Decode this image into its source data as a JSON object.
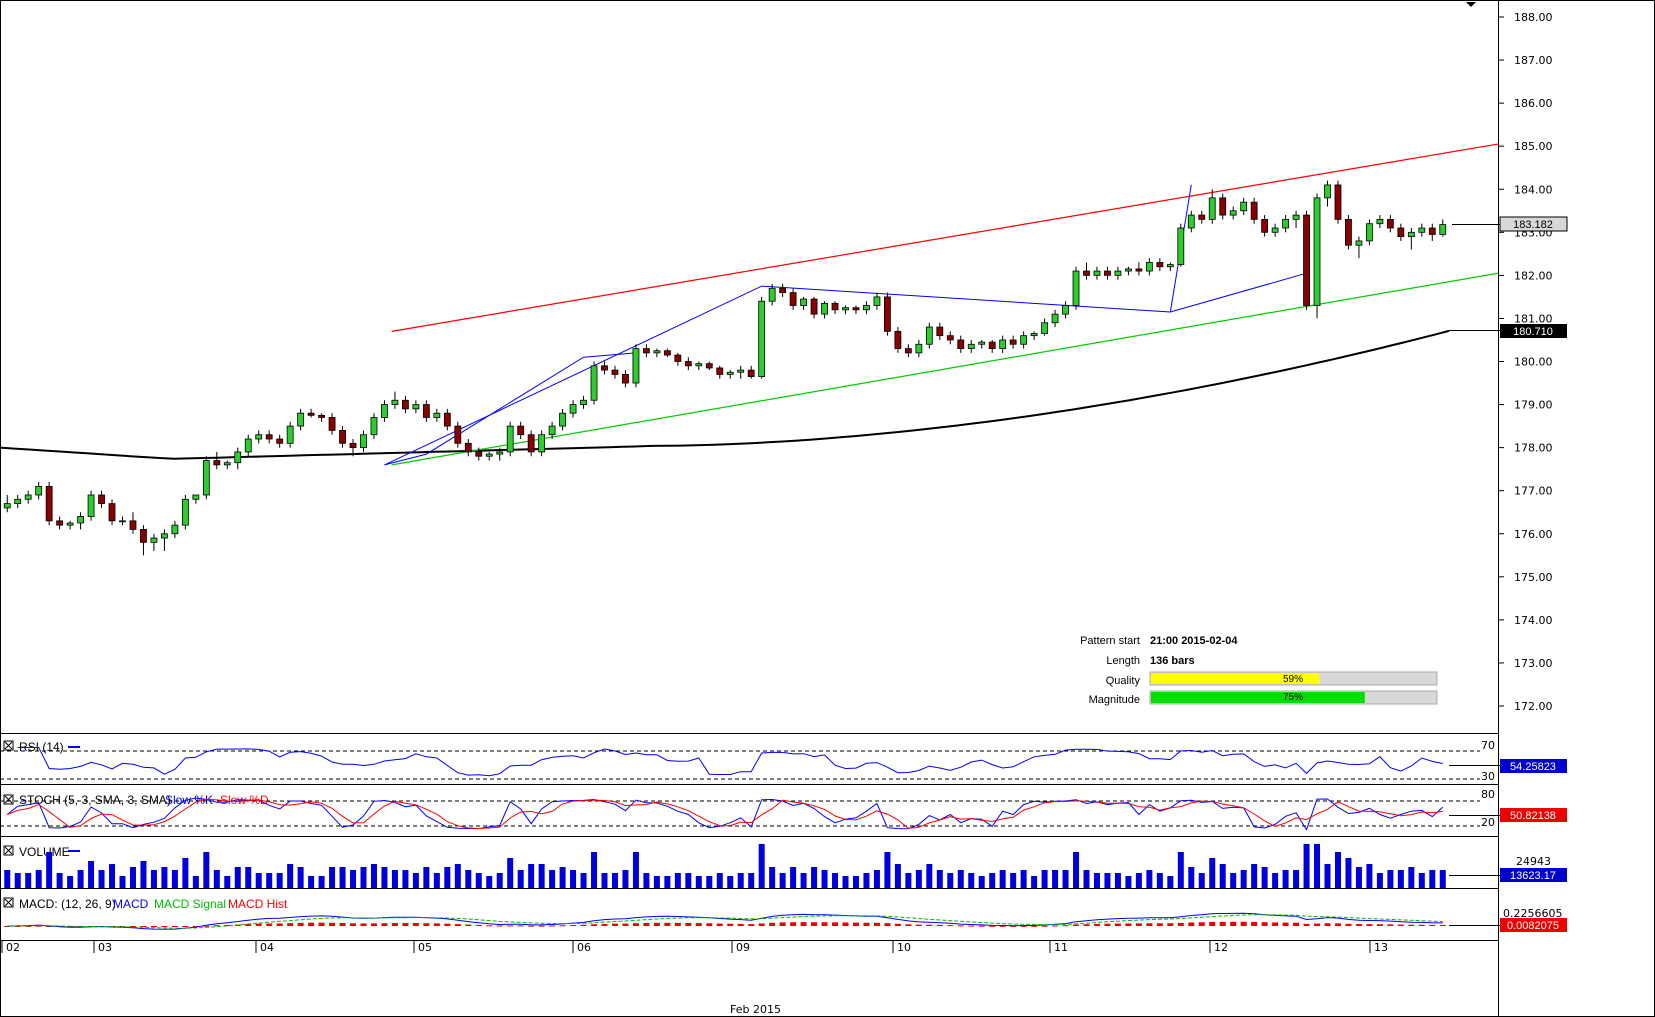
{
  "chart_data": {
    "type": "candlestick",
    "price_axis": {
      "ticks": [
        "188.00",
        "187.00",
        "186.00",
        "185.00",
        "184.00",
        "183.00",
        "182.00",
        "181.00",
        "180.00",
        "179.00",
        "178.00",
        "177.00",
        "176.00",
        "175.00",
        "174.00",
        "173.00",
        "172.00"
      ],
      "range": [
        171.3,
        188.2
      ]
    },
    "time_axis": {
      "labels": [
        "02",
        "03",
        "04",
        "05",
        "06",
        "09",
        "10",
        "11",
        "12",
        "13"
      ],
      "month_label": "Feb 2015"
    },
    "candles_ohlc_approx": [
      [
        176.6,
        176.9,
        176.5,
        176.7
      ],
      [
        176.7,
        176.9,
        176.6,
        176.8
      ],
      [
        176.8,
        177.0,
        176.7,
        176.9
      ],
      [
        176.9,
        177.2,
        176.8,
        177.1
      ],
      [
        177.1,
        177.2,
        176.2,
        176.3
      ],
      [
        176.3,
        176.4,
        176.1,
        176.2
      ],
      [
        176.2,
        176.3,
        176.1,
        176.25
      ],
      [
        176.25,
        176.5,
        176.1,
        176.4
      ],
      [
        176.4,
        177.0,
        176.3,
        176.9
      ],
      [
        176.9,
        177.0,
        176.6,
        176.7
      ],
      [
        176.7,
        176.8,
        176.2,
        176.3
      ],
      [
        176.3,
        176.4,
        176.2,
        176.3
      ],
      [
        176.3,
        176.5,
        176.0,
        176.1
      ],
      [
        176.1,
        176.2,
        175.5,
        175.8
      ],
      [
        175.8,
        176.0,
        175.6,
        175.9
      ],
      [
        175.9,
        176.1,
        175.6,
        176.0
      ],
      [
        176.0,
        176.3,
        175.9,
        176.2
      ],
      [
        176.2,
        176.9,
        176.1,
        176.8
      ],
      [
        176.8,
        176.9,
        176.7,
        176.9
      ],
      [
        176.9,
        177.8,
        176.8,
        177.7
      ],
      [
        177.7,
        177.9,
        177.5,
        177.6
      ],
      [
        177.6,
        177.7,
        177.5,
        177.65
      ],
      [
        177.65,
        178.0,
        177.5,
        177.9
      ],
      [
        177.9,
        178.3,
        177.8,
        178.2
      ],
      [
        178.2,
        178.4,
        178.1,
        178.3
      ],
      [
        178.3,
        178.4,
        178.1,
        178.2
      ],
      [
        178.2,
        178.3,
        178.0,
        178.1
      ],
      [
        178.1,
        178.6,
        178.0,
        178.5
      ],
      [
        178.5,
        178.9,
        178.4,
        178.8
      ],
      [
        178.8,
        178.9,
        178.7,
        178.75
      ],
      [
        178.75,
        178.8,
        178.6,
        178.7
      ],
      [
        178.7,
        178.8,
        178.3,
        178.4
      ],
      [
        178.4,
        178.5,
        178.0,
        178.1
      ],
      [
        178.1,
        178.2,
        177.8,
        178.0
      ],
      [
        178.0,
        178.4,
        177.9,
        178.3
      ],
      [
        178.3,
        178.8,
        178.2,
        178.7
      ],
      [
        178.7,
        179.1,
        178.6,
        179.0
      ],
      [
        179.0,
        179.3,
        178.9,
        179.1
      ],
      [
        179.1,
        179.2,
        178.8,
        178.9
      ],
      [
        178.9,
        179.1,
        178.8,
        179.0
      ],
      [
        179.0,
        179.1,
        178.6,
        178.7
      ],
      [
        178.7,
        178.9,
        178.6,
        178.8
      ],
      [
        178.8,
        178.9,
        178.4,
        178.5
      ],
      [
        178.5,
        178.6,
        178.0,
        178.1
      ],
      [
        178.1,
        178.2,
        177.8,
        177.9
      ],
      [
        177.9,
        178.0,
        177.7,
        177.8
      ],
      [
        177.8,
        177.9,
        177.7,
        177.85
      ],
      [
        177.85,
        178.0,
        177.7,
        177.9
      ],
      [
        177.9,
        178.6,
        177.8,
        178.5
      ],
      [
        178.5,
        178.6,
        178.2,
        178.3
      ],
      [
        178.3,
        178.4,
        177.8,
        177.9
      ],
      [
        177.9,
        178.4,
        177.8,
        178.3
      ],
      [
        178.3,
        178.6,
        178.2,
        178.5
      ],
      [
        178.5,
        178.9,
        178.4,
        178.8
      ],
      [
        178.8,
        179.1,
        178.7,
        179.0
      ],
      [
        179.0,
        179.2,
        178.9,
        179.1
      ],
      [
        179.1,
        180.0,
        179.0,
        179.9
      ],
      [
        179.9,
        180.0,
        179.7,
        179.8
      ],
      [
        179.8,
        179.9,
        179.6,
        179.7
      ],
      [
        179.7,
        179.8,
        179.4,
        179.5
      ],
      [
        179.5,
        180.4,
        179.4,
        180.3
      ],
      [
        180.3,
        180.4,
        180.1,
        180.2
      ],
      [
        180.2,
        180.3,
        180.1,
        180.25
      ],
      [
        180.25,
        180.3,
        180.1,
        180.15
      ],
      [
        180.15,
        180.2,
        179.9,
        180.0
      ],
      [
        180.0,
        180.1,
        179.8,
        179.9
      ],
      [
        179.9,
        180.0,
        179.8,
        179.95
      ],
      [
        179.95,
        180.0,
        179.8,
        179.85
      ],
      [
        179.85,
        179.9,
        179.6,
        179.7
      ],
      [
        179.7,
        179.8,
        179.6,
        179.75
      ],
      [
        179.75,
        179.9,
        179.6,
        179.8
      ],
      [
        179.8,
        179.9,
        179.6,
        179.65
      ],
      [
        179.65,
        181.5,
        179.6,
        181.4
      ],
      [
        181.4,
        181.8,
        181.3,
        181.7
      ],
      [
        181.7,
        181.8,
        181.5,
        181.6
      ],
      [
        181.6,
        181.7,
        181.2,
        181.3
      ],
      [
        181.3,
        181.5,
        181.2,
        181.45
      ],
      [
        181.45,
        181.5,
        181.0,
        181.1
      ],
      [
        181.1,
        181.4,
        181.0,
        181.35
      ],
      [
        181.35,
        181.4,
        181.1,
        181.2
      ],
      [
        181.2,
        181.3,
        181.1,
        181.25
      ],
      [
        181.25,
        181.3,
        181.1,
        181.2
      ],
      [
        181.2,
        181.4,
        181.1,
        181.3
      ],
      [
        181.3,
        181.6,
        181.2,
        181.5
      ],
      [
        181.5,
        181.6,
        180.6,
        180.7
      ],
      [
        180.7,
        180.8,
        180.2,
        180.3
      ],
      [
        180.3,
        180.4,
        180.1,
        180.2
      ],
      [
        180.2,
        180.5,
        180.1,
        180.4
      ],
      [
        180.4,
        180.9,
        180.3,
        180.8
      ],
      [
        180.8,
        180.9,
        180.5,
        180.6
      ],
      [
        180.6,
        180.7,
        180.4,
        180.5
      ],
      [
        180.5,
        180.6,
        180.2,
        180.3
      ],
      [
        180.3,
        180.5,
        180.2,
        180.4
      ],
      [
        180.4,
        180.5,
        180.3,
        180.45
      ],
      [
        180.45,
        180.5,
        180.2,
        180.3
      ],
      [
        180.3,
        180.6,
        180.2,
        180.5
      ],
      [
        180.5,
        180.6,
        180.3,
        180.4
      ],
      [
        180.4,
        180.7,
        180.3,
        180.6
      ],
      [
        180.6,
        180.7,
        180.5,
        180.65
      ],
      [
        180.65,
        181.0,
        180.6,
        180.9
      ],
      [
        180.9,
        181.2,
        180.8,
        181.1
      ],
      [
        181.1,
        181.4,
        181.0,
        181.3
      ],
      [
        181.3,
        182.2,
        181.2,
        182.1
      ],
      [
        182.1,
        182.3,
        181.9,
        182.0
      ],
      [
        182.0,
        182.2,
        181.9,
        182.1
      ],
      [
        182.1,
        182.2,
        181.9,
        182.0
      ],
      [
        182.0,
        182.2,
        181.9,
        182.1
      ],
      [
        182.1,
        182.2,
        182.0,
        182.15
      ],
      [
        182.15,
        182.3,
        182.0,
        182.1
      ],
      [
        182.1,
        182.4,
        182.0,
        182.3
      ],
      [
        182.3,
        182.4,
        182.1,
        182.2
      ],
      [
        182.2,
        182.3,
        182.1,
        182.25
      ],
      [
        182.25,
        183.2,
        182.2,
        183.1
      ],
      [
        183.1,
        183.5,
        183.0,
        183.4
      ],
      [
        183.4,
        183.5,
        183.2,
        183.3
      ],
      [
        183.3,
        184.0,
        183.2,
        183.8
      ],
      [
        183.8,
        183.9,
        183.3,
        183.4
      ],
      [
        183.4,
        183.6,
        183.3,
        183.5
      ],
      [
        183.5,
        183.8,
        183.4,
        183.7
      ],
      [
        183.7,
        183.8,
        183.2,
        183.3
      ],
      [
        183.3,
        183.4,
        182.9,
        183.0
      ],
      [
        183.0,
        183.2,
        182.9,
        183.1
      ],
      [
        183.1,
        183.4,
        183.0,
        183.3
      ],
      [
        183.3,
        183.5,
        183.1,
        183.4
      ],
      [
        183.4,
        183.5,
        181.2,
        181.3
      ],
      [
        181.3,
        183.9,
        181.0,
        183.8
      ],
      [
        183.8,
        184.2,
        183.6,
        184.1
      ],
      [
        184.1,
        184.2,
        183.2,
        183.3
      ],
      [
        183.3,
        183.4,
        182.6,
        182.7
      ],
      [
        182.7,
        182.9,
        182.4,
        182.8
      ],
      [
        182.8,
        183.3,
        182.7,
        183.2
      ],
      [
        183.2,
        183.4,
        183.1,
        183.3
      ],
      [
        183.3,
        183.4,
        183.0,
        183.1
      ],
      [
        183.1,
        183.2,
        182.8,
        182.9
      ],
      [
        182.9,
        183.1,
        182.6,
        183.0
      ],
      [
        183.0,
        183.2,
        182.9,
        183.1
      ],
      [
        183.1,
        183.2,
        182.8,
        182.95
      ],
      [
        182.95,
        183.3,
        182.9,
        183.18
      ]
    ],
    "moving_average_last": 180.71,
    "pattern_lines": {
      "resistance": [
        [
          0.2615,
          180.7
        ],
        [
          1.0,
          185.05
        ]
      ],
      "support": [
        [
          0.2615,
          177.6
        ],
        [
          1.0,
          182.05
        ]
      ]
    },
    "pattern_info": {
      "pattern_start_label": "Pattern start",
      "pattern_start": "21:00 2015-02-04",
      "length_label": "Length",
      "length": "136 bars",
      "quality_label": "Quality",
      "quality": 59,
      "quality_text": "59%",
      "magnitude_label": "Magnitude",
      "magnitude": 75,
      "magnitude_text": "75%"
    },
    "price_tags": {
      "last_price": "183.182",
      "ma_value": "180.710"
    },
    "indicators": {
      "rsi": {
        "title": "RSI (14)",
        "levels": [
          "70",
          "30"
        ],
        "value": "54.25823"
      },
      "stoch": {
        "title": "STOCH (5, 3, SMA, 3, SMA)",
        "legend_k": "Slow %K",
        "legend_d": "Slow %D",
        "levels": [
          "80",
          "20"
        ],
        "value": "50.82138"
      },
      "volume": {
        "title": "VOLUME",
        "level": "24943",
        "value": "13623.17"
      },
      "macd": {
        "title": "MACD: (12, 26, 9)",
        "legend_macd": "MACD",
        "legend_signal": "MACD Signal",
        "legend_hist": "MACD Hist",
        "level": "0.2256605",
        "value": "0.0082075"
      }
    },
    "colors": {
      "bull": "#2ecc2e",
      "bear": "#8b0000",
      "resistance": "#ff0000",
      "support": "#00cc00",
      "zigzag": "#0000ff",
      "ma": "#000000",
      "quality_bar": "#ffff00",
      "magnitude_bar": "#00dd00",
      "tag_blue": "#0000cc"
    }
  }
}
